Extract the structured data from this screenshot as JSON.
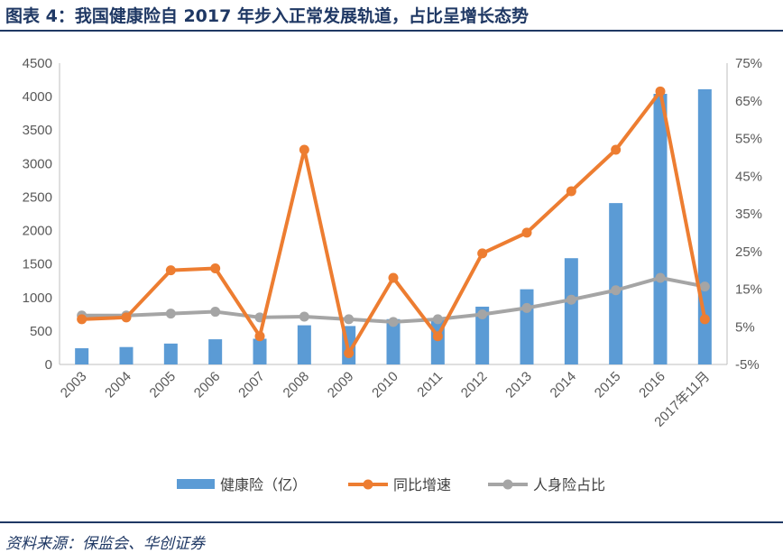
{
  "header": {
    "title": "图表 4：我国健康险自 2017 年步入正常发展轨道，占比呈增长态势"
  },
  "footer": {
    "source": "资料来源：保监会、华创证券"
  },
  "colors": {
    "title": "#1f3864",
    "bar": "#5b9bd5",
    "growth": "#ed7d31",
    "share": "#a5a5a5"
  },
  "chart_data": {
    "type": "bar",
    "categories": [
      "2003",
      "2004",
      "2005",
      "2006",
      "2007",
      "2008",
      "2009",
      "2010",
      "2011",
      "2012",
      "2013",
      "2014",
      "2015",
      "2016",
      "2017年11月"
    ],
    "series": [
      {
        "name": "健康险（亿）",
        "type": "bar",
        "axis": "left",
        "values": [
          242,
          260,
          312,
          376,
          384,
          585,
          574,
          677,
          692,
          863,
          1123,
          1587,
          2410,
          4042,
          4110
        ]
      },
      {
        "name": "同比增速",
        "type": "line",
        "axis": "right",
        "unit": "%",
        "values": [
          7.0,
          7.5,
          20.0,
          20.5,
          2.5,
          52.0,
          -2.0,
          18.0,
          2.5,
          24.5,
          30.0,
          41.0,
          52.0,
          67.5,
          7.0
        ]
      },
      {
        "name": "人身险占比",
        "type": "line",
        "axis": "right",
        "unit": "%",
        "values": [
          8.0,
          8.0,
          8.5,
          9.0,
          7.5,
          7.7,
          7.0,
          6.3,
          7.0,
          8.3,
          10.0,
          12.2,
          14.7,
          18.0,
          15.7
        ]
      }
    ],
    "y_left": {
      "ticks": [
        "0",
        "500",
        "1000",
        "1500",
        "2000",
        "2500",
        "3000",
        "3500",
        "4000",
        "4500"
      ],
      "ylim": [
        0,
        4500
      ]
    },
    "y_right": {
      "ticks": [
        "-5%",
        "5%",
        "15%",
        "25%",
        "35%",
        "45%",
        "55%",
        "65%",
        "75%"
      ],
      "ylim": [
        -5,
        75
      ]
    },
    "legend": {
      "position": "bottom"
    },
    "grid": false
  }
}
